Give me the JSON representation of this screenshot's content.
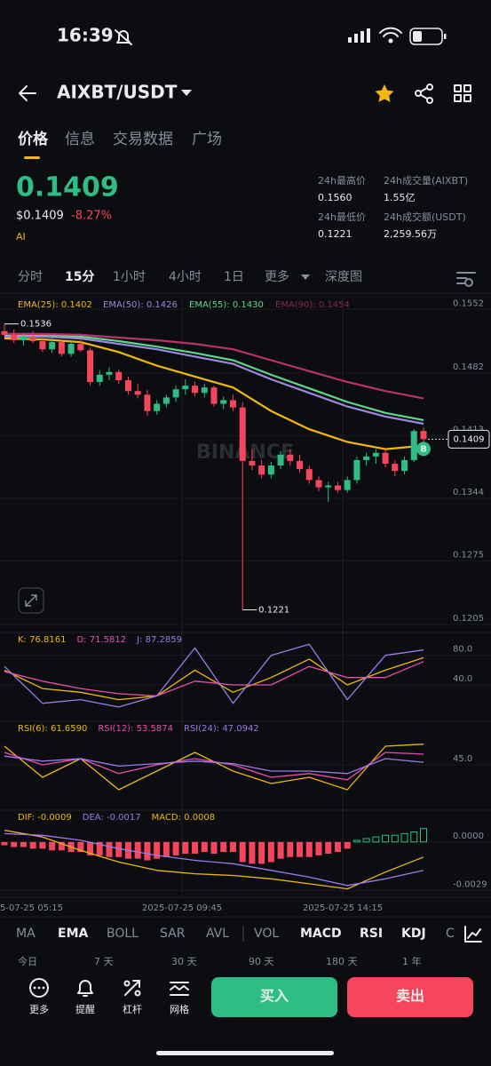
{
  "status_bar": {
    "time": "16:39"
  },
  "header": {
    "pair": "AIXBT/USDT"
  },
  "tabs": [
    "价格",
    "信息",
    "交易数据",
    "广场"
  ],
  "ticker": {
    "last": "0.1409",
    "usd": "$0.1409",
    "change": "-8.27%",
    "tag": "AI",
    "stats": [
      {
        "label": "24h最高价",
        "value": "0.1560"
      },
      {
        "label": "24h成交量(AIXBT)",
        "value": "1.55亿"
      },
      {
        "label": "24h最低价",
        "value": "0.1221"
      },
      {
        "label": "24h成交额(USDT)",
        "value": "2,259.56万"
      }
    ]
  },
  "intervals": [
    "分时",
    "15分",
    "1小时",
    "4小时",
    "1日",
    "更多",
    "深度图"
  ],
  "chart_data": [
    {
      "type": "candlestick",
      "up_color": "#2ebd85",
      "down_color": "#f6465d",
      "open": [
        0.1528,
        0.1524,
        0.1518,
        0.1522,
        0.1517,
        0.1508,
        0.1516,
        0.1503,
        0.1514,
        0.1507,
        0.1472,
        0.148,
        0.1483,
        0.1474,
        0.1462,
        0.1458,
        0.144,
        0.1448,
        0.1455,
        0.1464,
        0.1468,
        0.146,
        0.1466,
        0.1448,
        0.1452,
        0.1444,
        0.1385,
        0.138,
        0.137,
        0.138,
        0.1392,
        0.1385,
        0.1376,
        0.1364,
        0.1356,
        0.1358,
        0.1353,
        0.1364,
        0.1386,
        0.139,
        0.1394,
        0.1382,
        0.1374,
        0.1386,
        0.1418
      ],
      "high": [
        0.1536,
        0.153,
        0.1526,
        0.1528,
        0.1522,
        0.152,
        0.1519,
        0.1518,
        0.152,
        0.151,
        0.1485,
        0.1488,
        0.1486,
        0.1478,
        0.147,
        0.1463,
        0.1452,
        0.1458,
        0.1468,
        0.1475,
        0.1472,
        0.147,
        0.1468,
        0.1456,
        0.1458,
        0.145,
        0.1398,
        0.1386,
        0.1384,
        0.1396,
        0.1398,
        0.1392,
        0.138,
        0.1368,
        0.1362,
        0.1362,
        0.1368,
        0.139,
        0.1394,
        0.1398,
        0.1398,
        0.1386,
        0.139,
        0.142,
        0.1422
      ],
      "low": [
        0.1522,
        0.1515,
        0.1512,
        0.1515,
        0.1505,
        0.1504,
        0.15,
        0.15,
        0.1505,
        0.1468,
        0.1468,
        0.1474,
        0.147,
        0.1458,
        0.1454,
        0.1435,
        0.1436,
        0.1444,
        0.145,
        0.1458,
        0.1456,
        0.1455,
        0.1445,
        0.1442,
        0.144,
        0.1221,
        0.1375,
        0.1366,
        0.1366,
        0.1376,
        0.138,
        0.1372,
        0.136,
        0.1352,
        0.134,
        0.135,
        0.135,
        0.136,
        0.138,
        0.1382,
        0.1378,
        0.1368,
        0.137,
        0.1384,
        0.1405
      ],
      "close": [
        0.1524,
        0.1518,
        0.1522,
        0.1517,
        0.1508,
        0.1516,
        0.1503,
        0.1514,
        0.1507,
        0.1472,
        0.148,
        0.1483,
        0.1474,
        0.1462,
        0.1458,
        0.144,
        0.1448,
        0.1455,
        0.1464,
        0.1468,
        0.146,
        0.1466,
        0.1448,
        0.1452,
        0.1444,
        0.1385,
        0.138,
        0.137,
        0.138,
        0.1392,
        0.1385,
        0.1376,
        0.1364,
        0.1356,
        0.1358,
        0.1353,
        0.1364,
        0.1386,
        0.139,
        0.1394,
        0.1382,
        0.1374,
        0.1386,
        0.1418,
        0.1409
      ],
      "series": [
        {
          "name": "EMA(25): 0.1402",
          "color": "#f0b90b",
          "values": [
            0.152,
            0.1519,
            0.1516,
            0.1505,
            0.149,
            0.1478,
            0.1466,
            0.144,
            0.142,
            0.1406,
            0.1398,
            0.1402
          ]
        },
        {
          "name": "EMA(50): 0.1426",
          "color": "#9c88e0",
          "values": [
            0.1522,
            0.1522,
            0.152,
            0.1514,
            0.1508,
            0.15,
            0.1492,
            0.1475,
            0.146,
            0.1445,
            0.1434,
            0.1426
          ]
        },
        {
          "name": "EMA(55): 0.1430",
          "color": "#5fd68a",
          "values": [
            0.1524,
            0.1524,
            0.1522,
            0.1517,
            0.1511,
            0.1504,
            0.1496,
            0.148,
            0.1465,
            0.145,
            0.1438,
            0.143
          ]
        },
        {
          "name": "EMA(90): 0.1454",
          "color": "#b8336a",
          "values": [
            0.1525,
            0.1525,
            0.1524,
            0.1521,
            0.1518,
            0.1514,
            0.1508,
            0.1496,
            0.1484,
            0.1472,
            0.1462,
            0.1454
          ]
        }
      ],
      "ylim": [
        0.1198,
        0.1565
      ],
      "yticks": [
        0.1552,
        0.1482,
        0.1413,
        0.1344,
        0.1275,
        0.1205
      ],
      "last_price": 0.1409,
      "high_label": 0.1536,
      "low_label": 0.1221,
      "trade_marker": "B",
      "watermark": "BINANCE"
    },
    {
      "type": "line",
      "ylim": [
        -7,
        111
      ],
      "yticks": [
        {
          "value": 80,
          "label": "80.0"
        },
        {
          "value": 40,
          "label": "40.0"
        }
      ],
      "series": [
        {
          "name": "K: 76.8161",
          "color": "#f0b90b",
          "values": [
            60,
            35,
            30,
            20,
            25,
            60,
            30,
            50,
            75,
            40,
            60,
            76.8161
          ]
        },
        {
          "name": "D: 71.5812",
          "color": "#e84fb0",
          "values": [
            58,
            45,
            35,
            28,
            25,
            45,
            40,
            40,
            65,
            50,
            50,
            71.5812
          ]
        },
        {
          "name": "J: 87.2859",
          "color": "#9c7bea",
          "values": [
            65,
            15,
            20,
            10,
            25,
            90,
            15,
            80,
            95,
            20,
            80,
            87.2859
          ]
        }
      ]
    },
    {
      "type": "line",
      "ylim": [
        10,
        80
      ],
      "yticks": [
        {
          "value": 45,
          "label": "45.0"
        }
      ],
      "series": [
        {
          "name": "RSI(6): 61.6590",
          "color": "#f0b90b",
          "values": [
            60,
            35,
            50,
            25,
            40,
            55,
            40,
            30,
            35,
            25,
            60,
            61.659
          ]
        },
        {
          "name": "RSI(12): 53.5874",
          "color": "#e84fb0",
          "values": [
            55,
            45,
            50,
            38,
            45,
            50,
            45,
            35,
            38,
            33,
            55,
            53.5874
          ]
        },
        {
          "name": "RSI(24): 47.0942",
          "color": "#9c7bea",
          "values": [
            52,
            48,
            50,
            44,
            46,
            48,
            46,
            40,
            40,
            38,
            50,
            47.0942
          ]
        }
      ]
    },
    {
      "type": "macd",
      "ylim": [
        -0.0033,
        0.0019
      ],
      "yticks": [
        {
          "value": 0,
          "label": "0.0000"
        },
        {
          "value": -0.0029,
          "label": "-0.0029"
        }
      ],
      "series": [
        {
          "name": "DIF: -0.0009",
          "color": "#f0b90b",
          "values": [
            0.0007,
            0.0003,
            -0.0005,
            -0.0012,
            -0.0017,
            -0.0019,
            -0.002,
            -0.0022,
            -0.0025,
            -0.0028,
            -0.0018,
            -0.0009
          ]
        },
        {
          "name": "DEA: -0.0017",
          "color": "#9c7bea",
          "values": [
            0.0005,
            0.0004,
            0.0001,
            -0.0004,
            -0.0008,
            -0.0011,
            -0.0013,
            -0.0017,
            -0.0021,
            -0.0026,
            -0.0022,
            -0.0017
          ]
        }
      ],
      "histogram": {
        "name": "MACD: 0.0008",
        "color": "#f0b90b",
        "up_color": "#2ebd85",
        "down_color": "#f6465d",
        "values": [
          -0.0002,
          -0.0003,
          -0.0003,
          -0.0004,
          -0.0004,
          -0.0005,
          -0.0005,
          -0.0006,
          -0.0006,
          -0.0008,
          -0.0008,
          -0.0009,
          -0.0009,
          -0.001,
          -0.001,
          -0.0011,
          -0.001,
          -0.0009,
          -0.0008,
          -0.0007,
          -0.0007,
          -0.0006,
          -0.0007,
          -0.0006,
          -0.0006,
          -0.0012,
          -0.0013,
          -0.0013,
          -0.0012,
          -0.001,
          -0.0009,
          -0.0009,
          -0.0009,
          -0.0008,
          -0.0007,
          -0.0006,
          -0.0004,
          0.0001,
          0.0002,
          0.0003,
          0.0004,
          0.0004,
          0.0005,
          0.0006,
          0.0008
        ]
      }
    }
  ],
  "time_axis": [
    "5-07-25 05:15",
    "2025-07-25 09:45",
    "2025-07-25 14:15"
  ],
  "indicator_tabs": [
    "MA",
    "EMA",
    "BOLL",
    "SAR",
    "AVL",
    "VOL",
    "MACD",
    "RSI",
    "KDJ",
    "C"
  ],
  "ranges": [
    "今日",
    "7 天",
    "30 天",
    "90 天",
    "180 天",
    "1 年"
  ],
  "actions": {
    "tools": [
      "更多",
      "提醒",
      "杠杆",
      "网格"
    ],
    "buy": "买入",
    "sell": "卖出"
  }
}
